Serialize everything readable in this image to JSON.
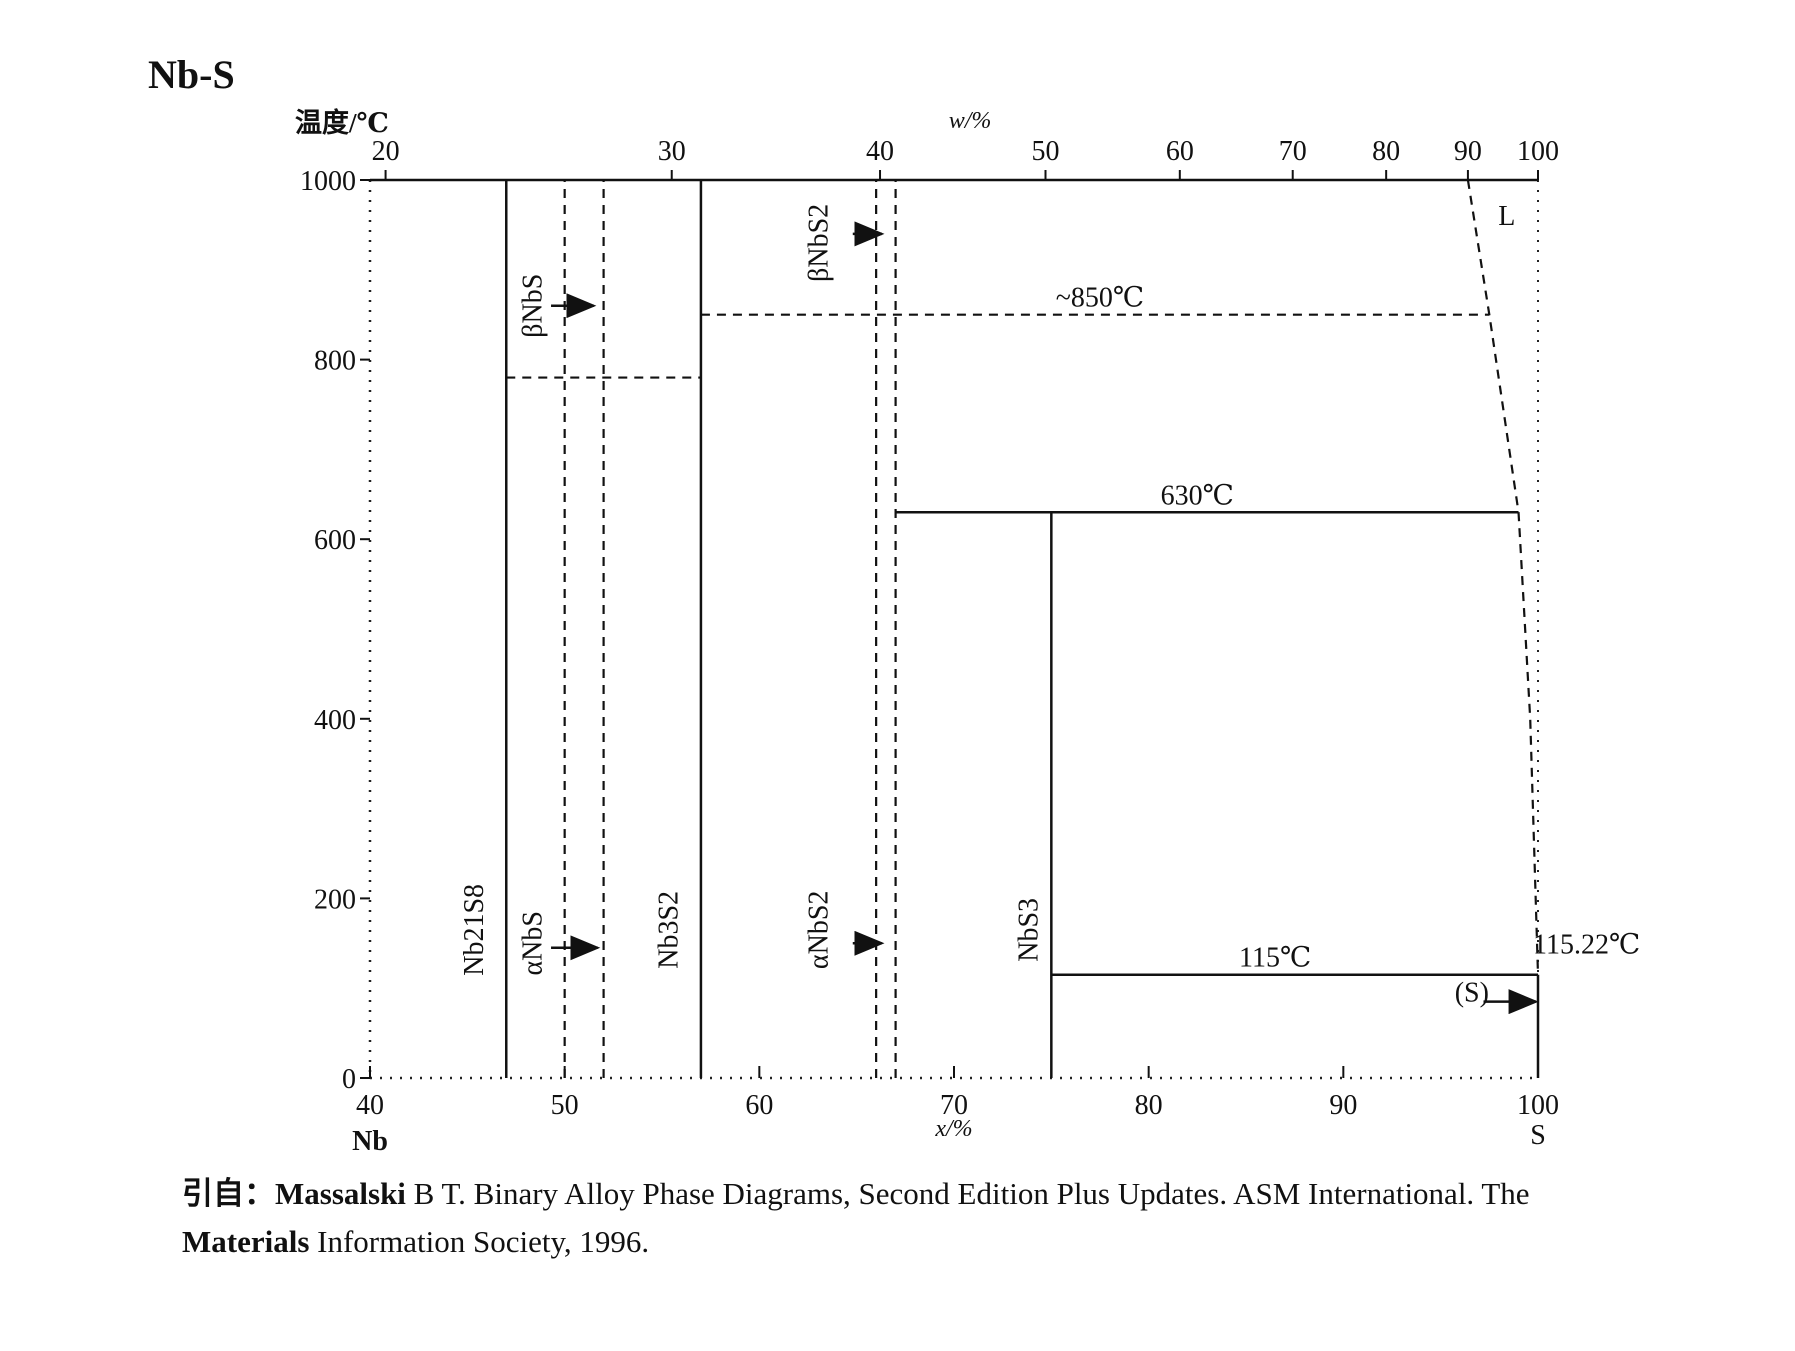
{
  "figure": {
    "title": "Nb-S",
    "citation_prefix": "引自：",
    "citation_author": "Massalski",
    "citation_text": "B T. Binary Alloy Phase Diagrams, Second Edition Plus Updates. ASM International. The",
    "citation_line2_bold": "Materials",
    "citation_line2": "Information Society, 1996."
  },
  "chart_data": {
    "type": "line",
    "title": "Nb-S",
    "ylabel": "温度/℃",
    "xlabel": "x/%",
    "x2label": "w/%",
    "xlim": [
      40,
      100
    ],
    "ylim": [
      0,
      1000
    ],
    "x_ticks": [
      "40",
      "50",
      "60",
      "70",
      "80",
      "90",
      "100"
    ],
    "y_ticks": [
      "0",
      "200",
      "400",
      "600",
      "800",
      "1000"
    ],
    "top_ticks": [
      {
        "w": 20,
        "x": 40.8
      },
      {
        "w": 30,
        "x": 55.5
      },
      {
        "w": 40,
        "x": 66.2
      },
      {
        "w": 50,
        "x": 74.7
      },
      {
        "w": 60,
        "x": 81.6
      },
      {
        "w": 70,
        "x": 87.4
      },
      {
        "w": 80,
        "x": 92.2
      },
      {
        "w": 90,
        "x": 96.4
      },
      {
        "w": 100,
        "x": 100
      }
    ],
    "x_end_labels": {
      "left": "Nb",
      "right": "S"
    },
    "solid_lines": [
      {
        "name": "Nb21S8 line",
        "points": [
          [
            47.0,
            0
          ],
          [
            47.0,
            1000
          ]
        ]
      },
      {
        "name": "Nb3S2 line",
        "points": [
          [
            57.0,
            0
          ],
          [
            57.0,
            1000
          ]
        ]
      },
      {
        "name": "NbS3 line",
        "points": [
          [
            75.0,
            0
          ],
          [
            75.0,
            630
          ]
        ]
      },
      {
        "name": "630 isotherm",
        "points": [
          [
            67.0,
            630
          ],
          [
            99.0,
            630
          ]
        ]
      },
      {
        "name": "115 isotherm",
        "points": [
          [
            75.0,
            115
          ],
          [
            100,
            115
          ]
        ]
      },
      {
        "name": "S line",
        "points": [
          [
            100,
            0
          ],
          [
            100,
            115
          ]
        ]
      },
      {
        "name": "top border",
        "points": [
          [
            40,
            1000
          ],
          [
            100,
            1000
          ]
        ]
      }
    ],
    "dashed_lines": [
      {
        "name": "NbS left boundary",
        "points": [
          [
            50.0,
            0
          ],
          [
            50.0,
            1000
          ]
        ]
      },
      {
        "name": "NbS right boundary",
        "points": [
          [
            52.0,
            0
          ],
          [
            52.0,
            1000
          ]
        ]
      },
      {
        "name": "NbS transition",
        "points": [
          [
            47.0,
            780
          ],
          [
            57.0,
            780
          ]
        ]
      },
      {
        "name": "NbS2 left boundary",
        "points": [
          [
            66.0,
            0
          ],
          [
            66.0,
            1000
          ]
        ]
      },
      {
        "name": "NbS2 right boundary",
        "points": [
          [
            67.0,
            0
          ],
          [
            67.0,
            1000
          ]
        ]
      },
      {
        "name": "850 isotherm",
        "points": [
          [
            57.0,
            850
          ],
          [
            97.5,
            850
          ]
        ]
      },
      {
        "name": "liquidus",
        "points": [
          [
            96.4,
            1000
          ],
          [
            97.5,
            850
          ],
          [
            99.0,
            630
          ],
          [
            99.6,
            400
          ],
          [
            100,
            115
          ]
        ]
      }
    ],
    "temperature_labels": [
      {
        "text": "~850℃",
        "x": 77.5,
        "y": 850
      },
      {
        "text": "630℃",
        "x": 82.5,
        "y": 630
      },
      {
        "text": "115℃",
        "x": 86.5,
        "y": 115
      },
      {
        "text": "115.22℃",
        "x": 102.5,
        "y": 130
      }
    ],
    "phase_labels": [
      {
        "text": "L",
        "x": 98.4,
        "y": 950,
        "rotate": false
      },
      {
        "text": "Nb21S8",
        "x": 45.8,
        "y": 165,
        "rotate": true
      },
      {
        "text": "αNbS",
        "x": 48.8,
        "y": 150,
        "rotate": true
      },
      {
        "text": "βNbS",
        "x": 48.8,
        "y": 860,
        "rotate": true
      },
      {
        "text": "Nb3S2",
        "x": 55.8,
        "y": 165,
        "rotate": true
      },
      {
        "text": "αNbS2",
        "x": 63.5,
        "y": 165,
        "rotate": true
      },
      {
        "text": "βNbS2",
        "x": 63.5,
        "y": 930,
        "rotate": true
      },
      {
        "text": "NbS3",
        "x": 74.3,
        "y": 165,
        "rotate": true
      },
      {
        "text": "(S)",
        "x": 96.6,
        "y": 85,
        "rotate": false
      }
    ],
    "arrows": [
      {
        "from": [
          49.3,
          860
        ],
        "to": [
          51.5,
          860
        ]
      },
      {
        "from": [
          49.3,
          145
        ],
        "to": [
          51.7,
          145
        ]
      },
      {
        "from": [
          64.8,
          940
        ],
        "to": [
          66.3,
          940
        ]
      },
      {
        "from": [
          64.8,
          150
        ],
        "to": [
          66.3,
          150
        ]
      },
      {
        "from": [
          97.2,
          85
        ],
        "to": [
          99.9,
          85
        ]
      }
    ],
    "grid": false
  }
}
